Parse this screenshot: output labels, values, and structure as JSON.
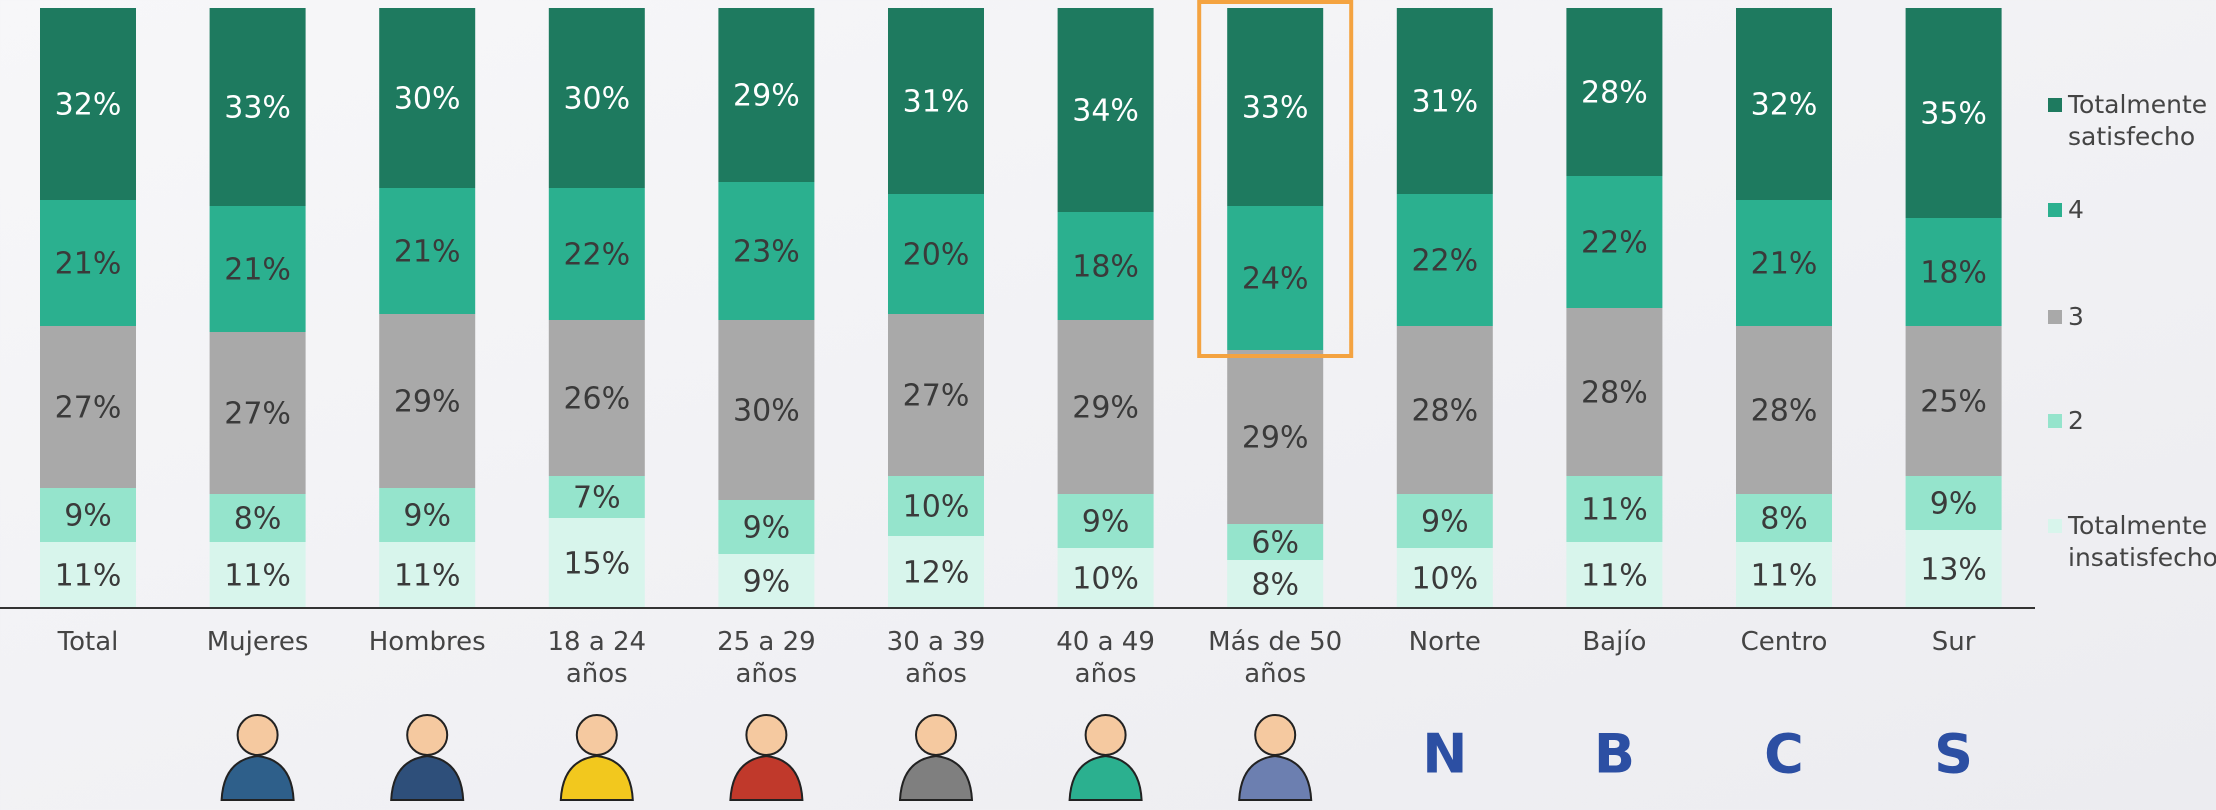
{
  "chart_data": {
    "type": "stacked-bar",
    "categories": [
      "Total",
      "Mujeres",
      "Hombres",
      "18 a 24 años",
      "25 a 29 años",
      "30 a 39 años",
      "40 a 49 años",
      "Más de 50 años",
      "Norte",
      "Bajío",
      "Centro",
      "Sur"
    ],
    "ylim": [
      0,
      100
    ],
    "series": [
      {
        "name": "Totalmente satisfecho",
        "color": "#1e7a5f",
        "values": [
          32,
          33,
          30,
          30,
          29,
          31,
          34,
          33,
          31,
          28,
          32,
          35
        ],
        "value_labels": [
          "32%",
          "33%",
          "30%",
          "30%",
          "29%",
          "31%",
          "34%",
          "33%",
          "31%",
          "28%",
          "32%",
          "35%"
        ]
      },
      {
        "name": "4",
        "color": "#2bb08f",
        "values": [
          21,
          21,
          21,
          22,
          23,
          20,
          18,
          24,
          22,
          22,
          21,
          18
        ],
        "value_labels": [
          "21%",
          "21%",
          "21%",
          "22%",
          "23%",
          "20%",
          "18%",
          "24%",
          "22%",
          "22%",
          "21%",
          "18%"
        ]
      },
      {
        "name": "3",
        "color": "#a9a9a9",
        "values": [
          27,
          27,
          29,
          26,
          30,
          27,
          29,
          29,
          28,
          28,
          28,
          25
        ],
        "value_labels": [
          "27%",
          "27%",
          "29%",
          "26%",
          "30%",
          "27%",
          "29%",
          "29%",
          "28%",
          "28%",
          "28%",
          "25%"
        ]
      },
      {
        "name": "2",
        "color": "#95e4cc",
        "values": [
          9,
          8,
          9,
          7,
          9,
          10,
          9,
          6,
          9,
          11,
          8,
          9
        ],
        "value_labels": [
          "9%",
          "8%",
          "9%",
          "7%",
          "9%",
          "10%",
          "9%",
          "6%",
          "9%",
          "11%",
          "8%",
          "9%"
        ]
      },
      {
        "name": "Totalmente insatisfecho",
        "color": "#d8f5ec",
        "values": [
          11,
          11,
          11,
          15,
          9,
          12,
          10,
          8,
          10,
          11,
          11,
          13
        ],
        "value_labels": [
          "11%",
          "11%",
          "11%",
          "15%",
          "9%",
          "12%",
          "10%",
          "8%",
          "10%",
          "11%",
          "11%",
          "13%"
        ]
      }
    ]
  },
  "region_icons": [
    "N",
    "B",
    "C",
    "S"
  ]
}
